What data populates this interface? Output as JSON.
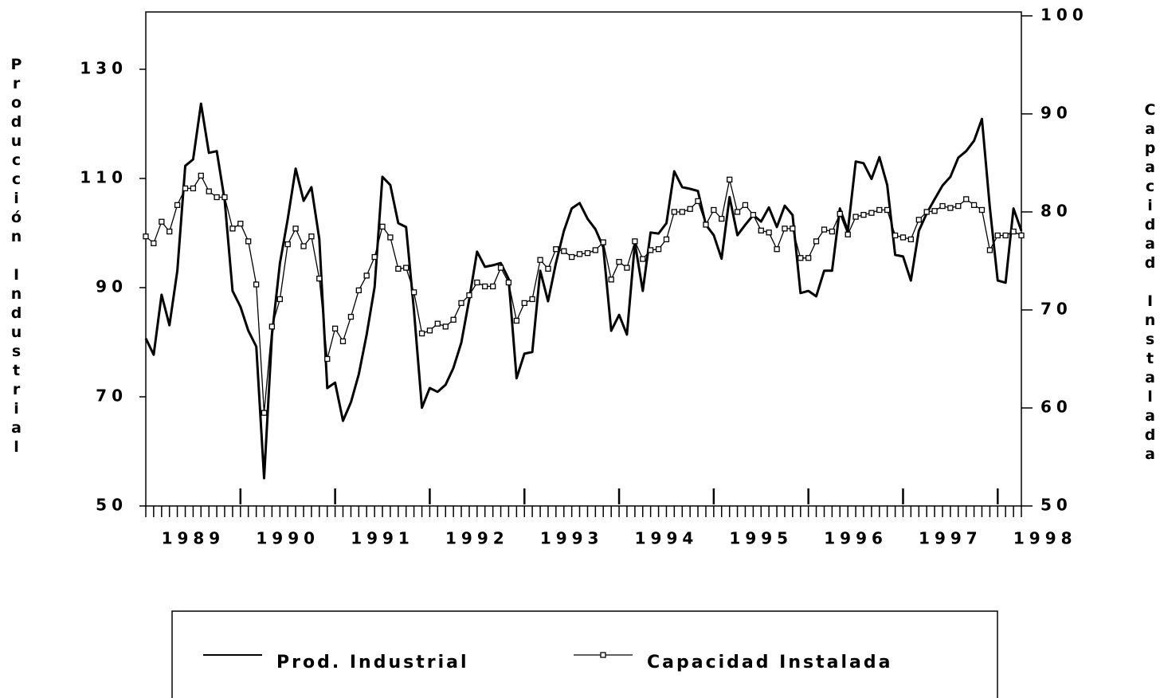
{
  "chart_data": {
    "type": "line",
    "y_label": "Producción Industrial",
    "y2_label": "Capacidad Instalada",
    "x": [
      1989,
      1989.083,
      1989.167,
      1989.25,
      1989.333,
      1989.417,
      1989.5,
      1989.583,
      1989.667,
      1989.75,
      1989.833,
      1989.917,
      1990,
      1990.083,
      1990.167,
      1990.25,
      1990.333,
      1990.417,
      1990.5,
      1990.583,
      1990.667,
      1990.75,
      1990.833,
      1990.917,
      1991,
      1991.083,
      1991.167,
      1991.25,
      1991.333,
      1991.417,
      1991.5,
      1991.583,
      1991.667,
      1991.75,
      1991.833,
      1991.917,
      1992,
      1992.083,
      1992.167,
      1992.25,
      1992.333,
      1992.417,
      1992.5,
      1992.583,
      1992.667,
      1992.75,
      1992.833,
      1992.917,
      1993,
      1993.083,
      1993.167,
      1993.25,
      1993.333,
      1993.417,
      1993.5,
      1993.583,
      1993.667,
      1993.75,
      1993.833,
      1993.917,
      1994,
      1994.083,
      1994.167,
      1994.25,
      1994.333,
      1994.417,
      1994.5,
      1994.583,
      1994.667,
      1994.75,
      1994.833,
      1994.917,
      1995,
      1995.083,
      1995.167,
      1995.25,
      1995.333,
      1995.417,
      1995.5,
      1995.583,
      1995.667,
      1995.75,
      1995.833,
      1995.917,
      1996,
      1996.083,
      1996.167,
      1996.25,
      1996.333,
      1996.417,
      1996.5,
      1996.583,
      1996.667,
      1996.75,
      1996.833,
      1996.917,
      1997,
      1997.083,
      1997.167,
      1997.25,
      1997.333,
      1997.417,
      1997.5,
      1997.583,
      1997.667,
      1997.75,
      1997.833,
      1997.917,
      1998,
      1998.083,
      1998.167,
      1998.25
    ],
    "series": [
      {
        "name": "Prod. Industrial",
        "color": "#000000",
        "axis": "y",
        "values": [
          80.7,
          77.7,
          88.7,
          83.1,
          93.1,
          112.3,
          113.5,
          123.7,
          114.7,
          115,
          106,
          89.4,
          86.5,
          82.1,
          79.2,
          55.1,
          81.4,
          94.5,
          102.6,
          111.8,
          105.9,
          108.4,
          98.9,
          71.6,
          72.6,
          65.6,
          69,
          74.1,
          81.4,
          90.1,
          110.3,
          108.8,
          101.8,
          101.1,
          85.8,
          68,
          71.6,
          70.9,
          72.2,
          75.3,
          79.9,
          87.9,
          96.6,
          93.8,
          94.1,
          94.5,
          91.6,
          73.4,
          77.9,
          78.2,
          93.1,
          87.5,
          94.5,
          100.4,
          104.5,
          105.5,
          102.6,
          100.7,
          97.4,
          82.1,
          85,
          81.4,
          98.2,
          89.4,
          100.1,
          99.9,
          101.8,
          111.3,
          108.4,
          108.1,
          107.7,
          101.5,
          99.6,
          95.3,
          106.6,
          99.6,
          101.5,
          103.3,
          102.1,
          104.7,
          101.1,
          105,
          103.3,
          89,
          89.4,
          88.4,
          93.1,
          93.1,
          104.5,
          100.4,
          113.1,
          112.8,
          109.9,
          113.9,
          108.8,
          96,
          95.7,
          91.3,
          100.4,
          103.6,
          106.2,
          108.7,
          110.3,
          113.8,
          115,
          116.9,
          120.9,
          104.7,
          91.3,
          90.9,
          104.5,
          100.4
        ]
      },
      {
        "name": "Capacidad Instalada",
        "color": "#000000",
        "axis": "y2",
        "marker": "square",
        "values": [
          77.5,
          76.8,
          79,
          78,
          80.7,
          82.4,
          82.4,
          83.7,
          82.1,
          81.5,
          81.5,
          78.3,
          78.8,
          77,
          72.6,
          59.5,
          68.3,
          71.1,
          76.7,
          78.3,
          76.5,
          77.5,
          73.2,
          65,
          68.1,
          66.8,
          69.3,
          72,
          73.5,
          75.4,
          78.5,
          77.4,
          74.2,
          74.3,
          71.8,
          67.6,
          67.9,
          68.6,
          68.3,
          69,
          70.7,
          71.5,
          72.8,
          72.4,
          72.4,
          74.3,
          72.8,
          68.9,
          70.7,
          71.1,
          75.1,
          74.2,
          76.2,
          76,
          75.4,
          75.7,
          75.8,
          76.1,
          76.9,
          73.1,
          74.9,
          74.3,
          77,
          75.2,
          76.1,
          76.2,
          77.2,
          80,
          80,
          80.3,
          81.1,
          78.7,
          80.2,
          79.3,
          83.3,
          80,
          80.7,
          79.7,
          78.1,
          77.9,
          76.2,
          78.3,
          78.3,
          75.3,
          75.3,
          77,
          78.2,
          78,
          79.8,
          77.7,
          79.5,
          79.7,
          79.9,
          80.2,
          80.2,
          77.6,
          77.4,
          77.2,
          79.2,
          80,
          80.1,
          80.6,
          80.4,
          80.6,
          81.3,
          80.7,
          80.2,
          76.1,
          77.6,
          77.6,
          78,
          77.6
        ]
      }
    ],
    "xlim": [
      1989,
      1998.25
    ],
    "xticks": [
      {
        "value": 1989.5,
        "label": "1989"
      },
      {
        "value": 1990.5,
        "label": "1990"
      },
      {
        "value": 1991.5,
        "label": "1991"
      },
      {
        "value": 1992.5,
        "label": "1992"
      },
      {
        "value": 1993.5,
        "label": "1993"
      },
      {
        "value": 1994.5,
        "label": "1994"
      },
      {
        "value": 1995.5,
        "label": "1995"
      },
      {
        "value": 1996.5,
        "label": "1996"
      },
      {
        "value": 1997.5,
        "label": "1997"
      },
      {
        "value": 1998.5,
        "label": "1998"
      }
    ],
    "xmajorticks": [
      1990,
      1991,
      1992,
      1993,
      1994,
      1995,
      1996,
      1997,
      1998
    ],
    "ylim": [
      50,
      140.5
    ],
    "yticks": [
      50,
      70,
      90,
      110,
      130
    ],
    "y2lim": [
      50,
      100.4
    ],
    "y2ticks": [
      50,
      60,
      70,
      80,
      90,
      100
    ],
    "grid": false,
    "legend": "bottom"
  }
}
